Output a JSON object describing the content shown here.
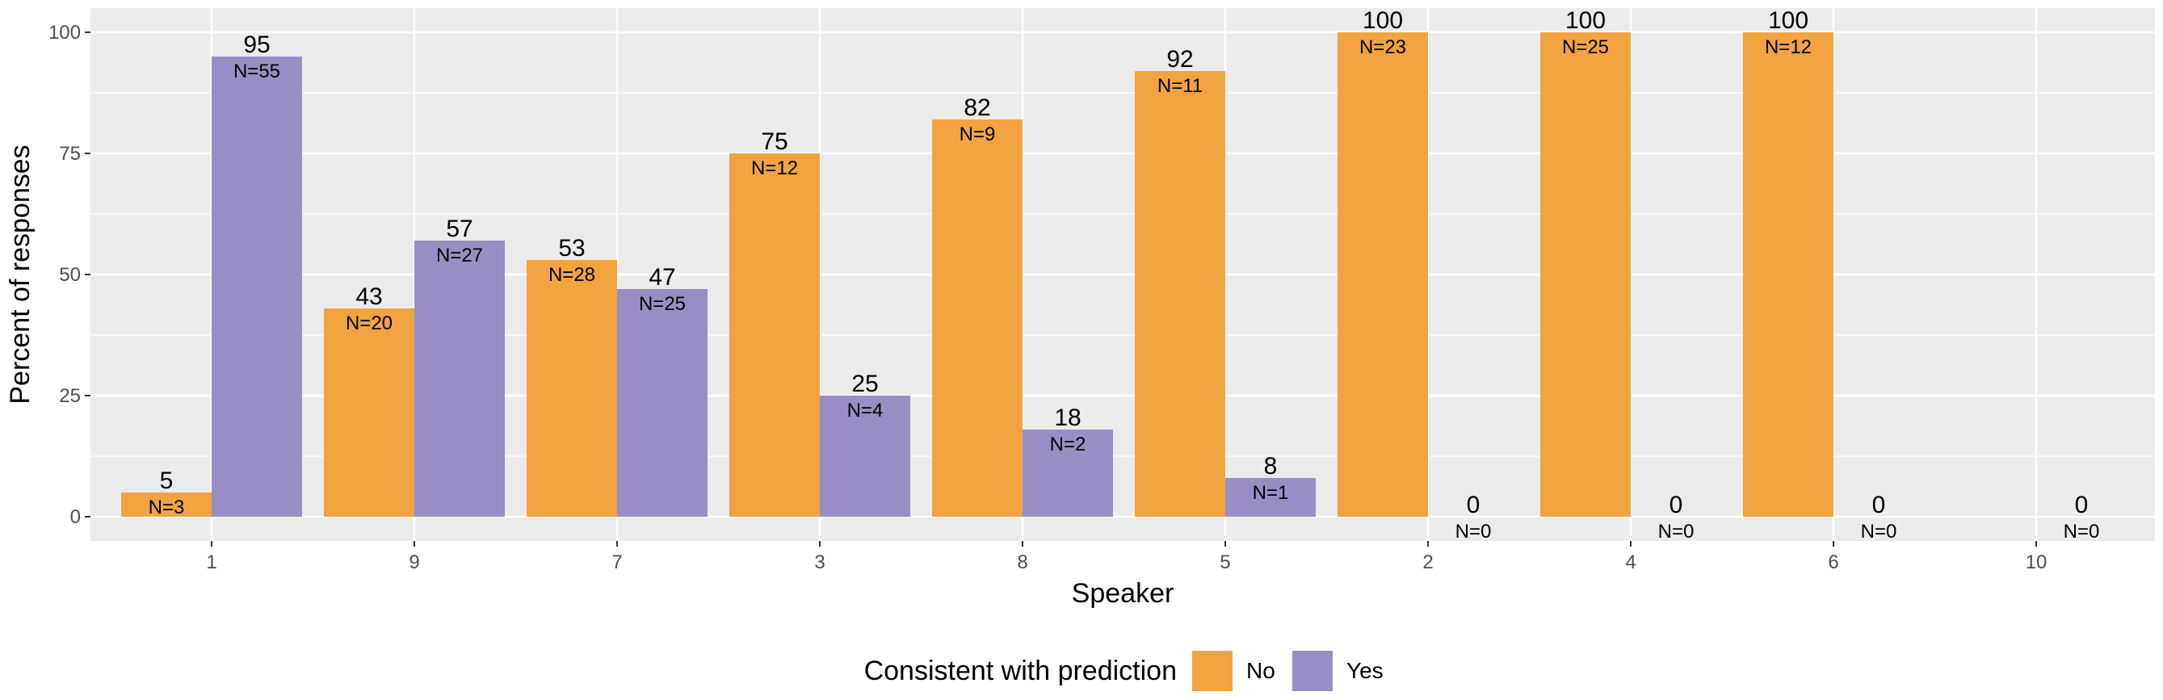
{
  "chart_data": {
    "type": "bar",
    "xlabel": "Speaker",
    "ylabel": "Percent of responses",
    "ylim": [
      0,
      105
    ],
    "yticks": [
      0,
      25,
      50,
      75,
      100
    ],
    "grid": true,
    "legend_placement": "bottom",
    "legend_title": "Consistent with prediction",
    "categories": [
      "1",
      "9",
      "7",
      "3",
      "8",
      "5",
      "2",
      "4",
      "6",
      "10"
    ],
    "series": [
      {
        "name": "No",
        "color": "#F1A340",
        "values": [
          5,
          43,
          53,
          75,
          82,
          92,
          100,
          100,
          100,
          null
        ],
        "value_labels": [
          "5",
          "43",
          "53",
          "75",
          "82",
          "92",
          "100",
          "100",
          "100",
          ""
        ],
        "n_labels": [
          "N=3",
          "N=20",
          "N=28",
          "N=12",
          "N=9",
          "N=11",
          "N=23",
          "N=25",
          "N=12",
          ""
        ]
      },
      {
        "name": "Yes",
        "color": "#998EC3",
        "values": [
          95,
          57,
          47,
          25,
          18,
          8,
          0,
          0,
          0,
          0
        ],
        "value_labels": [
          "95",
          "57",
          "47",
          "25",
          "18",
          "8",
          "0",
          "0",
          "0",
          "0"
        ],
        "n_labels": [
          "N=55",
          "N=27",
          "N=25",
          "N=4",
          "N=2",
          "N=1",
          "N=0",
          "N=0",
          "N=0",
          "N=0"
        ]
      }
    ]
  }
}
